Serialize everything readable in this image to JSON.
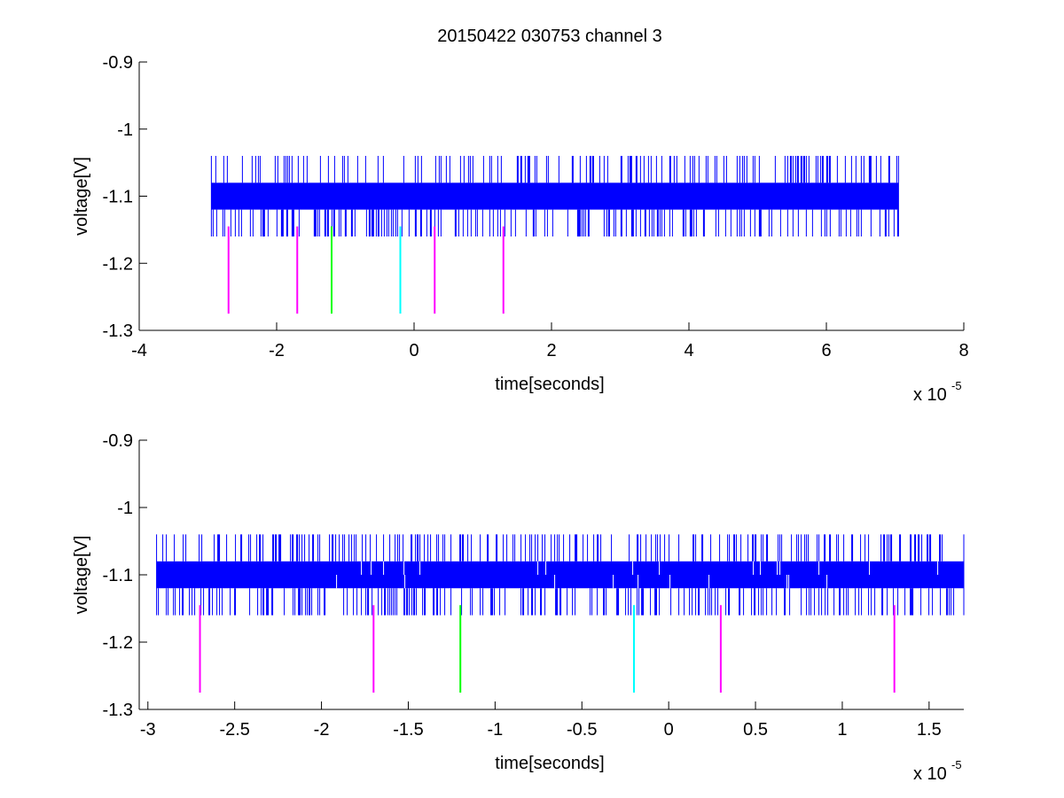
{
  "title": "20150422 030753 channel 3",
  "colors": {
    "signal": "#0000ff",
    "magenta": "#ff00ff",
    "green": "#00ff00",
    "cyan": "#00ffff",
    "axes": "#000000",
    "background": "#ffffff"
  },
  "chart_data": [
    {
      "type": "line",
      "xlabel": "time[seconds]",
      "ylabel": "voltage[V]",
      "x_multiplier_label": "x 10",
      "x_multiplier_exponent": "-5",
      "xlim": [
        -4,
        8
      ],
      "ylim": [
        -1.3,
        -0.9
      ],
      "x_ticks": [
        -4,
        -2,
        0,
        2,
        4,
        6,
        8
      ],
      "x_tick_labels": [
        "-4",
        "-2",
        "0",
        "2",
        "4",
        "6",
        "8"
      ],
      "y_ticks": [
        -0.9,
        -1.0,
        -1.1,
        -1.2,
        -1.3
      ],
      "y_tick_labels": [
        "-0.9",
        "-1",
        "-1.1",
        "-1.2",
        "-1.3"
      ],
      "grid": false,
      "series": [
        {
          "style": "signal",
          "x_range": [
            -2.95,
            7.05
          ],
          "band": [
            -1.12,
            -1.08
          ],
          "spike_levels": [
            -1.04,
            -1.16
          ],
          "color": "#0000ff"
        }
      ],
      "markers": [
        {
          "x": -2.7,
          "y_range": [
            -1.275,
            -1.145
          ],
          "color": "#ff00ff"
        },
        {
          "x": -1.7,
          "y_range": [
            -1.275,
            -1.145
          ],
          "color": "#ff00ff"
        },
        {
          "x": -1.2,
          "y_range": [
            -1.275,
            -1.145
          ],
          "color": "#00ff00"
        },
        {
          "x": -0.2,
          "y_range": [
            -1.275,
            -1.145
          ],
          "color": "#00ffff"
        },
        {
          "x": 0.3,
          "y_range": [
            -1.275,
            -1.145
          ],
          "color": "#ff00ff"
        },
        {
          "x": 1.3,
          "y_range": [
            -1.275,
            -1.145
          ],
          "color": "#ff00ff"
        }
      ]
    },
    {
      "type": "line",
      "xlabel": "time[seconds]",
      "ylabel": "voltage[V]",
      "x_multiplier_label": "x 10",
      "x_multiplier_exponent": "-5",
      "xlim": [
        -3.05,
        1.7
      ],
      "ylim": [
        -1.3,
        -0.9
      ],
      "x_ticks": [
        -3,
        -2.5,
        -2,
        -1.5,
        -1,
        -0.5,
        0,
        0.5,
        1,
        1.5
      ],
      "x_tick_labels": [
        "-3",
        "-2.5",
        "-2",
        "-1.5",
        "-1",
        "-0.5",
        "0",
        "0.5",
        "1",
        "1.5"
      ],
      "y_ticks": [
        -0.9,
        -1.0,
        -1.1,
        -1.2,
        -1.3
      ],
      "y_tick_labels": [
        "-0.9",
        "-1",
        "-1.1",
        "-1.2",
        "-1.3"
      ],
      "grid": false,
      "series": [
        {
          "style": "signal",
          "x_range": [
            -2.95,
            1.7
          ],
          "band": [
            -1.12,
            -1.08
          ],
          "spike_levels": [
            -1.04,
            -1.16
          ],
          "color": "#0000ff"
        }
      ],
      "markers": [
        {
          "x": -2.7,
          "y_range": [
            -1.275,
            -1.145
          ],
          "color": "#ff00ff"
        },
        {
          "x": -1.7,
          "y_range": [
            -1.275,
            -1.145
          ],
          "color": "#ff00ff"
        },
        {
          "x": -1.2,
          "y_range": [
            -1.275,
            -1.145
          ],
          "color": "#00ff00"
        },
        {
          "x": -0.2,
          "y_range": [
            -1.275,
            -1.145
          ],
          "color": "#00ffff"
        },
        {
          "x": 0.3,
          "y_range": [
            -1.275,
            -1.145
          ],
          "color": "#ff00ff"
        },
        {
          "x": 1.3,
          "y_range": [
            -1.275,
            -1.145
          ],
          "color": "#ff00ff"
        }
      ]
    }
  ]
}
